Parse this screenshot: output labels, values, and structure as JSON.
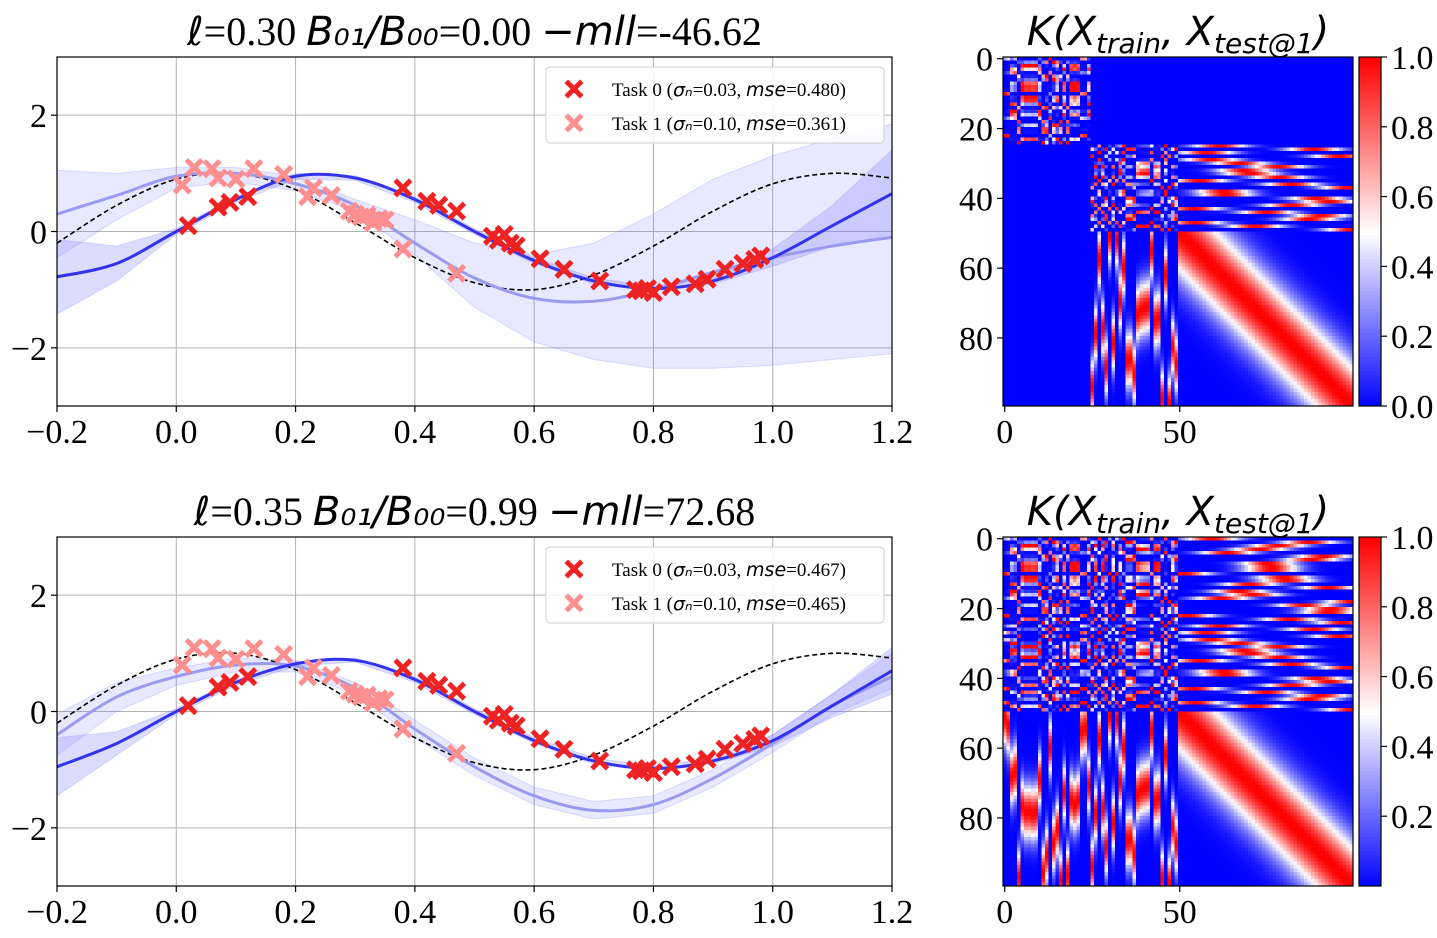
{
  "colors": {
    "task0": "#ee2222",
    "task1": "#ff8f8f",
    "mean_task0": "#3333ee",
    "mean_task1": "#9a9af0",
    "band": "#8080ff",
    "truth": "#000000",
    "grid": "#b0b0b0"
  },
  "chart_data": [
    {
      "type": "line",
      "title": {
        "ell": "0.30",
        "ratio": "0.00",
        "mll": "-46.62"
      },
      "title_parts": {
        "ell_sym": "ℓ",
        "ratio_math": "B₀₁/B₀₀",
        "mll_math": "−mll"
      },
      "xlim": [
        -0.2,
        1.2
      ],
      "ylim": [
        -3,
        3
      ],
      "xticks": [
        "−0.2",
        "0.0",
        "0.2",
        "0.4",
        "0.6",
        "0.8",
        "1.0",
        "1.2"
      ],
      "yticks": [
        "−2",
        "0",
        "2"
      ],
      "grid": true,
      "legend_position": "top-right",
      "legend": [
        {
          "task": "Task 0",
          "sigma": "0.03",
          "mse": "0.480"
        },
        {
          "task": "Task 1",
          "sigma": "0.10",
          "mse": "0.361"
        }
      ],
      "series": [
        {
          "kind": "mean",
          "task": 0,
          "x": [
            -0.2,
            -0.1,
            0.0,
            0.1,
            0.2,
            0.3,
            0.4,
            0.5,
            0.6,
            0.7,
            0.8,
            0.9,
            1.0,
            1.1,
            1.2
          ],
          "y": [
            -0.78,
            -0.55,
            0.0,
            0.55,
            0.95,
            0.92,
            0.55,
            0.0,
            -0.5,
            -0.85,
            -0.98,
            -0.85,
            -0.45,
            0.1,
            0.65
          ],
          "lower": [
            -1.42,
            -0.85,
            -0.05,
            0.5,
            0.9,
            0.88,
            0.5,
            -0.05,
            -0.55,
            -0.9,
            -1.02,
            -0.9,
            -0.6,
            -0.25,
            -0.1
          ],
          "upper": [
            -0.14,
            -0.25,
            0.05,
            0.6,
            1.0,
            0.96,
            0.6,
            0.05,
            -0.45,
            -0.8,
            -0.94,
            -0.8,
            -0.3,
            0.45,
            1.4
          ]
        },
        {
          "kind": "mean",
          "task": 1,
          "x": [
            -0.2,
            -0.1,
            0.0,
            0.1,
            0.2,
            0.3,
            0.4,
            0.5,
            0.6,
            0.7,
            0.8,
            0.9,
            1.0,
            1.1,
            1.2
          ],
          "y": [
            0.3,
            0.62,
            0.95,
            1.0,
            0.82,
            0.45,
            -0.2,
            -0.8,
            -1.15,
            -1.2,
            -1.0,
            -0.7,
            -0.45,
            -0.25,
            -0.1
          ],
          "lower": [
            -0.45,
            0.2,
            0.75,
            0.85,
            0.7,
            0.35,
            -0.4,
            -1.3,
            -1.9,
            -2.2,
            -2.35,
            -2.35,
            -2.3,
            -2.2,
            -2.1
          ],
          "upper": [
            1.05,
            1.0,
            1.1,
            1.1,
            0.95,
            0.55,
            0.2,
            -0.2,
            -0.4,
            -0.2,
            0.3,
            0.9,
            1.3,
            1.6,
            1.85
          ]
        },
        {
          "kind": "truth",
          "x": [
            -0.2,
            -0.1,
            0.0,
            0.1,
            0.2,
            0.3,
            0.4,
            0.5,
            0.6,
            0.7,
            0.8,
            0.9,
            1.0,
            1.1,
            1.2
          ],
          "y": [
            -0.2,
            0.45,
            0.9,
            1.0,
            0.72,
            0.15,
            -0.45,
            -0.88,
            -1.0,
            -0.75,
            -0.25,
            0.35,
            0.82,
            1.0,
            0.92
          ]
        },
        {
          "kind": "points",
          "task": 0,
          "x": [
            0.02,
            0.07,
            0.09,
            0.12,
            0.38,
            0.42,
            0.44,
            0.47,
            0.53,
            0.54,
            0.55,
            0.56,
            0.57,
            0.61,
            0.65,
            0.71,
            0.77,
            0.78,
            0.79,
            0.8,
            0.83,
            0.87,
            0.89,
            0.92,
            0.95,
            0.97,
            0.98
          ],
          "y": [
            0.1,
            0.42,
            0.5,
            0.6,
            0.75,
            0.52,
            0.45,
            0.35,
            -0.08,
            -0.15,
            -0.05,
            -0.2,
            -0.25,
            -0.47,
            -0.65,
            -0.85,
            -1.0,
            -1.02,
            -0.98,
            -1.05,
            -0.95,
            -0.9,
            -0.82,
            -0.65,
            -0.55,
            -0.48,
            -0.42
          ]
        },
        {
          "kind": "points",
          "task": 1,
          "x": [
            0.01,
            0.03,
            0.06,
            0.07,
            0.1,
            0.13,
            0.18,
            0.22,
            0.23,
            0.26,
            0.29,
            0.3,
            0.31,
            0.32,
            0.33,
            0.34,
            0.35,
            0.38,
            0.47
          ],
          "y": [
            0.8,
            1.1,
            1.08,
            0.92,
            0.9,
            1.08,
            0.98,
            0.6,
            0.75,
            0.62,
            0.35,
            0.3,
            0.25,
            0.28,
            0.15,
            0.22,
            0.2,
            -0.3,
            -0.72
          ]
        }
      ]
    },
    {
      "type": "heatmap",
      "title_math": "K(X_train, X_test@1)",
      "xticks": [
        "0",
        "50"
      ],
      "yticks": [
        "0",
        "20",
        "40",
        "60",
        "80"
      ],
      "colorbar_ticks": [
        "1.0",
        "0.8",
        "0.6",
        "0.4",
        "0.2",
        "0.0"
      ],
      "colorbar_range": [
        0.0,
        1.0
      ],
      "colormap": "bwr",
      "size": [
        100,
        100
      ],
      "task_blocks": [
        25,
        50
      ]
    },
    {
      "type": "line",
      "title": {
        "ell": "0.35",
        "ratio": "0.99",
        "mll": "72.68"
      },
      "title_parts": {
        "ell_sym": "ℓ",
        "ratio_math": "B₀₁/B₀₀",
        "mll_math": "−mll"
      },
      "xlim": [
        -0.2,
        1.2
      ],
      "ylim": [
        -3,
        3
      ],
      "xticks": [
        "−0.2",
        "0.0",
        "0.2",
        "0.4",
        "0.6",
        "0.8",
        "1.0",
        "1.2"
      ],
      "yticks": [
        "−2",
        "0",
        "2"
      ],
      "grid": true,
      "legend_position": "top-right",
      "legend": [
        {
          "task": "Task 0",
          "sigma": "0.03",
          "mse": "0.467"
        },
        {
          "task": "Task 1",
          "sigma": "0.10",
          "mse": "0.465"
        }
      ],
      "series": [
        {
          "kind": "mean",
          "task": 0,
          "x": [
            -0.2,
            -0.1,
            0.0,
            0.1,
            0.2,
            0.3,
            0.4,
            0.5,
            0.6,
            0.7,
            0.8,
            0.9,
            1.0,
            1.1,
            1.2
          ],
          "y": [
            -0.95,
            -0.55,
            0.0,
            0.5,
            0.82,
            0.88,
            0.55,
            0.0,
            -0.5,
            -0.85,
            -0.98,
            -0.85,
            -0.5,
            0.1,
            0.7
          ],
          "lower": [
            -1.45,
            -0.75,
            -0.05,
            0.45,
            0.78,
            0.85,
            0.5,
            -0.05,
            -0.55,
            -0.9,
            -1.02,
            -0.9,
            -0.6,
            -0.1,
            0.3
          ],
          "upper": [
            -0.45,
            -0.35,
            0.05,
            0.55,
            0.86,
            0.92,
            0.6,
            0.05,
            -0.45,
            -0.8,
            -0.94,
            -0.8,
            -0.4,
            0.3,
            1.1
          ]
        },
        {
          "kind": "mean",
          "task": 1,
          "x": [
            -0.2,
            -0.1,
            0.0,
            0.1,
            0.2,
            0.3,
            0.4,
            0.5,
            0.6,
            0.7,
            0.8,
            0.9,
            1.0,
            1.1,
            1.2
          ],
          "y": [
            -0.4,
            0.25,
            0.6,
            0.8,
            0.78,
            0.4,
            -0.3,
            -0.95,
            -1.45,
            -1.7,
            -1.6,
            -1.15,
            -0.55,
            0.1,
            0.6
          ],
          "lower": [
            -0.75,
            0.0,
            0.45,
            0.68,
            0.68,
            0.3,
            -0.45,
            -1.1,
            -1.6,
            -1.85,
            -1.75,
            -1.3,
            -0.7,
            -0.05,
            0.4
          ],
          "upper": [
            -0.05,
            0.5,
            0.75,
            0.92,
            0.88,
            0.5,
            -0.15,
            -0.8,
            -1.3,
            -1.55,
            -1.45,
            -1.0,
            -0.4,
            0.3,
            1.0
          ]
        },
        {
          "kind": "truth",
          "x": [
            -0.2,
            -0.1,
            0.0,
            0.1,
            0.2,
            0.3,
            0.4,
            0.5,
            0.6,
            0.7,
            0.8,
            0.9,
            1.0,
            1.1,
            1.2
          ],
          "y": [
            -0.2,
            0.45,
            0.9,
            1.0,
            0.72,
            0.15,
            -0.45,
            -0.88,
            -1.0,
            -0.75,
            -0.25,
            0.35,
            0.82,
            1.0,
            0.92
          ]
        },
        {
          "kind": "points",
          "task": 0,
          "x": [
            0.02,
            0.07,
            0.09,
            0.12,
            0.38,
            0.42,
            0.44,
            0.47,
            0.53,
            0.54,
            0.55,
            0.56,
            0.57,
            0.61,
            0.65,
            0.71,
            0.77,
            0.78,
            0.79,
            0.8,
            0.83,
            0.87,
            0.89,
            0.92,
            0.95,
            0.97,
            0.98
          ],
          "y": [
            0.1,
            0.42,
            0.5,
            0.6,
            0.75,
            0.52,
            0.45,
            0.35,
            -0.08,
            -0.15,
            -0.05,
            -0.2,
            -0.25,
            -0.47,
            -0.65,
            -0.85,
            -1.0,
            -1.02,
            -0.98,
            -1.05,
            -0.95,
            -0.9,
            -0.82,
            -0.65,
            -0.55,
            -0.48,
            -0.42
          ]
        },
        {
          "kind": "points",
          "task": 1,
          "x": [
            0.01,
            0.03,
            0.06,
            0.07,
            0.1,
            0.13,
            0.18,
            0.22,
            0.23,
            0.26,
            0.29,
            0.3,
            0.31,
            0.32,
            0.33,
            0.34,
            0.35,
            0.38,
            0.47
          ],
          "y": [
            0.8,
            1.1,
            1.08,
            0.92,
            0.9,
            1.08,
            0.98,
            0.6,
            0.75,
            0.62,
            0.35,
            0.3,
            0.25,
            0.28,
            0.15,
            0.22,
            0.2,
            -0.3,
            -0.72
          ]
        }
      ]
    },
    {
      "type": "heatmap",
      "title_math": "K(X_train, X_test@1)",
      "xticks": [
        "0",
        "50"
      ],
      "yticks": [
        "0",
        "20",
        "40",
        "60",
        "80"
      ],
      "colorbar_ticks": [
        "1.0",
        "0.8",
        "0.6",
        "0.4",
        "0.2"
      ],
      "colorbar_range": [
        0.0,
        1.0
      ],
      "colormap": "bwr",
      "size": [
        100,
        100
      ],
      "task_blocks": [
        50,
        50
      ]
    }
  ]
}
